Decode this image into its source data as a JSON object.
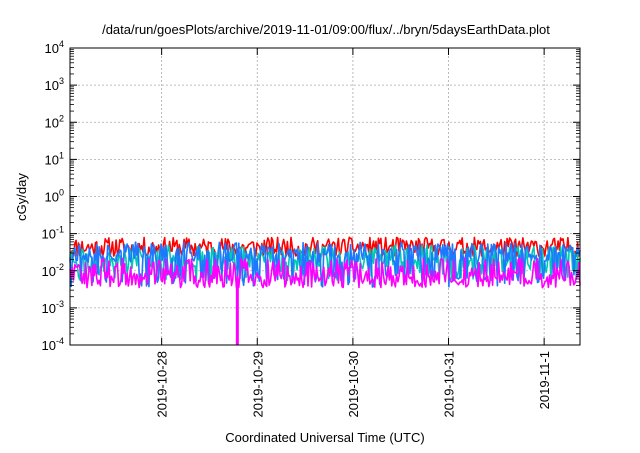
{
  "chart_data": {
    "type": "line",
    "title": "/data/run/goesPlots/archive/2019-11-01/09:00/flux/../bryn/5daysEarthData.plot",
    "xlabel": "Coordinated Universal Time (UTC)",
    "ylabel": "cGy/day",
    "yscale": "log",
    "ylim": [
      0.0001,
      10000
    ],
    "xlim": [
      "2019-10-27T01:00",
      "2019-11-01T09:00"
    ],
    "grid": true,
    "legend": "none",
    "y_ticks": [
      {
        "base": "10",
        "exp": "-4",
        "value": 0.0001
      },
      {
        "base": "10",
        "exp": "-3",
        "value": 0.001
      },
      {
        "base": "10",
        "exp": "-2",
        "value": 0.01
      },
      {
        "base": "10",
        "exp": "-1",
        "value": 0.1
      },
      {
        "base": "10",
        "exp": "0",
        "value": 1
      },
      {
        "base": "10",
        "exp": "1",
        "value": 10
      },
      {
        "base": "10",
        "exp": "2",
        "value": 100
      },
      {
        "base": "10",
        "exp": "3",
        "value": 1000
      },
      {
        "base": "10",
        "exp": "4",
        "value": 10000
      }
    ],
    "x_ticks": [
      {
        "label": "2019-10-28",
        "value": "2019-10-28T00:00"
      },
      {
        "label": "2019-10-29",
        "value": "2019-10-29T00:00"
      },
      {
        "label": "2019-10-30",
        "value": "2019-10-30T00:00"
      },
      {
        "label": "2019-10-31",
        "value": "2019-10-31T00:00"
      },
      {
        "label": "2019-11-1",
        "value": "2019-11-01T00:00"
      }
    ],
    "series": [
      {
        "color": "#ff0000",
        "base": 0.035,
        "spread": 0.55,
        "floor": 0.025,
        "dips": false,
        "seed": 11
      },
      {
        "color": "#00c8b4",
        "base": 0.02,
        "spread": 0.6,
        "floor": 0.009,
        "dips": true,
        "seed": 23
      },
      {
        "color": "#1e78ff",
        "base": 0.026,
        "spread": 0.55,
        "floor": 0.006,
        "dips": true,
        "seed": 37
      },
      {
        "color": "#ff00ff",
        "base": 0.005,
        "spread": 0.45,
        "floor": 0.0035,
        "dips": false,
        "spikes": true,
        "seed": 53
      }
    ],
    "events": [
      {
        "type": "dropout",
        "series_color": "#ff00ff",
        "time": "2019-10-28T19:00",
        "value": 0.0001
      }
    ]
  }
}
